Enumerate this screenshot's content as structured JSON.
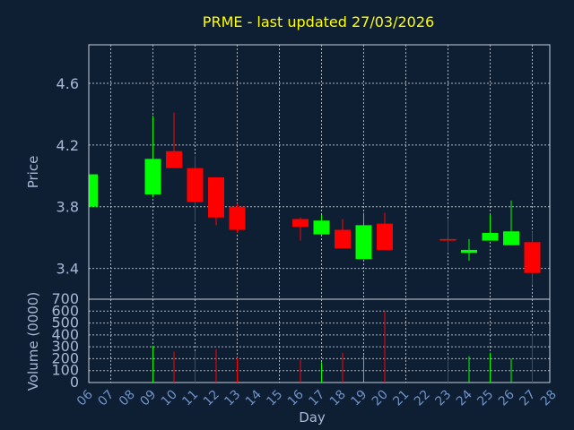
{
  "chart_data": {
    "type": "candlestick",
    "title": "PRME - last updated 27/03/2026",
    "xlabel": "Day",
    "x_ticks": [
      "06",
      "07",
      "08",
      "09",
      "10",
      "11",
      "12",
      "13",
      "14",
      "15",
      "16",
      "17",
      "18",
      "19",
      "20",
      "21",
      "22",
      "23",
      "24",
      "25",
      "26",
      "27",
      "28"
    ],
    "price_panel": {
      "ylabel": "Price",
      "ylim": [
        3.2,
        4.85
      ],
      "yticks": [
        "3.4",
        "3.8",
        "4.2",
        "4.6"
      ],
      "ytick_values": [
        3.4,
        3.8,
        4.2,
        4.6
      ],
      "grid": true
    },
    "volume_panel": {
      "ylabel": "Volume (0000)",
      "ylim": [
        0,
        700
      ],
      "yticks": [
        "0",
        "100",
        "200",
        "300",
        "400",
        "500",
        "600",
        "700"
      ],
      "ytick_values": [
        0,
        100,
        200,
        300,
        400,
        500,
        600,
        700
      ],
      "grid": true
    },
    "up_color": "#00ff00",
    "down_color": "#ff0000",
    "candles": [
      {
        "day": 6,
        "open": 3.8,
        "close": 4.01,
        "high": 4.01,
        "low": 3.8,
        "volume": 0
      },
      {
        "day": 9,
        "open": 3.88,
        "close": 4.11,
        "high": 4.39,
        "low": 3.86,
        "volume": 310
      },
      {
        "day": 10,
        "open": 4.16,
        "close": 4.05,
        "high": 4.41,
        "low": 4.05,
        "volume": 260
      },
      {
        "day": 11,
        "open": 4.05,
        "close": 3.83,
        "high": 4.13,
        "low": 3.7,
        "volume": 260
      },
      {
        "day": 12,
        "open": 3.99,
        "close": 3.73,
        "high": 3.99,
        "low": 3.68,
        "volume": 280
      },
      {
        "day": 13,
        "open": 3.8,
        "close": 3.65,
        "high": 3.82,
        "low": 3.63,
        "volume": 210
      },
      {
        "day": 16,
        "open": 3.72,
        "close": 3.67,
        "high": 3.73,
        "low": 3.58,
        "volume": 190
      },
      {
        "day": 17,
        "open": 3.62,
        "close": 3.71,
        "high": 3.75,
        "low": 3.62,
        "volume": 170
      },
      {
        "day": 18,
        "open": 3.65,
        "close": 3.53,
        "high": 3.72,
        "low": 3.53,
        "volume": 250
      },
      {
        "day": 19,
        "open": 3.46,
        "close": 3.68,
        "high": 3.76,
        "low": 3.46,
        "volume": 230
      },
      {
        "day": 20,
        "open": 3.69,
        "close": 3.52,
        "high": 3.76,
        "low": 3.52,
        "volume": 600
      },
      {
        "day": 23,
        "open": 3.59,
        "close": 3.58,
        "high": 3.72,
        "low": 3.51,
        "volume": 210
      },
      {
        "day": 24,
        "open": 3.5,
        "close": 3.52,
        "high": 3.59,
        "low": 3.45,
        "volume": 220
      },
      {
        "day": 25,
        "open": 3.58,
        "close": 3.63,
        "high": 3.75,
        "low": 3.58,
        "volume": 250
      },
      {
        "day": 26,
        "open": 3.55,
        "close": 3.64,
        "high": 3.84,
        "low": 3.55,
        "volume": 200
      },
      {
        "day": 27,
        "open": 3.57,
        "close": 3.37,
        "high": 3.64,
        "low": 3.29,
        "volume": 400
      }
    ]
  }
}
